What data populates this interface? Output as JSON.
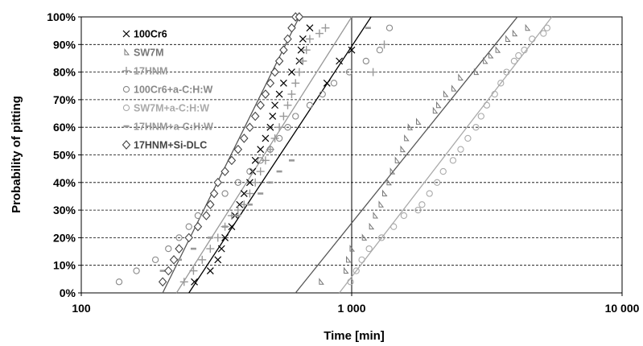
{
  "chart_data": {
    "type": "scatter",
    "title": "",
    "xlabel": "Time [min]",
    "ylabel": "Probability of pitting",
    "x_scale": "log",
    "xlim": [
      100,
      10000
    ],
    "ylim": [
      0,
      100
    ],
    "x_ticks": [
      {
        "value": 100,
        "label": "100"
      },
      {
        "value": 1000,
        "label": "1 000"
      },
      {
        "value": 10000,
        "label": "10 000"
      }
    ],
    "y_ticks": [
      {
        "value": 0,
        "label": "0%"
      },
      {
        "value": 10,
        "label": "10%"
      },
      {
        "value": 20,
        "label": "20%"
      },
      {
        "value": 30,
        "label": "30%"
      },
      {
        "value": 40,
        "label": "40%"
      },
      {
        "value": 50,
        "label": "50%"
      },
      {
        "value": 60,
        "label": "60%"
      },
      {
        "value": 70,
        "label": "70%"
      },
      {
        "value": 80,
        "label": "80%"
      },
      {
        "value": 90,
        "label": "90%"
      },
      {
        "value": 100,
        "label": "100%"
      }
    ],
    "grid": {
      "horizontal": true,
      "style": "dashed",
      "vertical_at": [
        1000
      ]
    },
    "legend_position": "top-left",
    "series": [
      {
        "name": "100Cr6",
        "marker": "x",
        "color": "#000000",
        "fit_color": "#000000",
        "x": [
          262,
          300,
          320,
          330,
          340,
          360,
          370,
          385,
          400,
          420,
          430,
          440,
          460,
          480,
          500,
          510,
          520,
          540,
          560,
          600,
          640,
          650,
          660,
          700,
          810,
          900,
          1000
        ],
        "y": [
          4,
          8,
          12,
          16,
          20,
          24,
          28,
          32,
          36,
          40,
          44,
          48,
          52,
          56,
          60,
          64,
          68,
          72,
          76,
          80,
          84,
          88,
          92,
          96,
          76,
          84,
          88
        ],
        "fit": [
          [
            250,
            0
          ],
          [
            1180,
            100
          ]
        ]
      },
      {
        "name": "SW7M",
        "marker": "triangle",
        "color": "#777777",
        "fit_color": "#555555",
        "x": [
          770,
          950,
          970,
          1000,
          1110,
          1180,
          1220,
          1280,
          1320,
          1370,
          1410,
          1470,
          1540,
          1590,
          1640,
          1760,
          2030,
          2090,
          2220,
          2380,
          2520,
          2880,
          3110,
          3260,
          3460,
          3770,
          4000,
          4460
        ],
        "y": [
          4,
          8,
          12,
          16,
          20,
          24,
          28,
          32,
          36,
          40,
          44,
          48,
          52,
          56,
          60,
          62,
          66,
          68,
          72,
          74,
          78,
          80,
          84,
          86,
          88,
          92,
          94,
          96
        ],
        "fit": [
          [
            620,
            0
          ],
          [
            4100,
            100
          ]
        ]
      },
      {
        "name": "17HNM",
        "marker": "plus",
        "color": "#999999",
        "fit_color": "#999999",
        "x": [
          240,
          260,
          280,
          300,
          320,
          340,
          360,
          380,
          400,
          420,
          440,
          460,
          480,
          500,
          520,
          540,
          560,
          580,
          600,
          620,
          640,
          660,
          680,
          700,
          760,
          800,
          1200,
          1320
        ],
        "y": [
          4,
          8,
          12,
          16,
          20,
          24,
          28,
          30,
          32,
          36,
          40,
          44,
          48,
          52,
          56,
          60,
          64,
          68,
          72,
          76,
          80,
          84,
          88,
          92,
          94,
          96,
          80,
          90
        ],
        "fit": [
          [
            225,
            0
          ],
          [
            1000,
            100
          ]
        ]
      },
      {
        "name": "100Cr6+a-C:H:W",
        "marker": "circle",
        "color": "#888888",
        "fit_color": null,
        "x": [
          138,
          160,
          188,
          210,
          230,
          250,
          270,
          300,
          340,
          380,
          420,
          460,
          500,
          540,
          580,
          620,
          700,
          780,
          860,
          980,
          1130,
          1270,
          1380
        ],
        "y": [
          4,
          8,
          12,
          16,
          20,
          24,
          28,
          32,
          36,
          40,
          44,
          48,
          52,
          56,
          60,
          64,
          68,
          72,
          76,
          80,
          84,
          88,
          96
        ],
        "fit": null
      },
      {
        "name": "SW7M+a-C:H:W",
        "marker": "circle",
        "color": "#aaaaaa",
        "fit_color": "#aaaaaa",
        "x": [
          990,
          1040,
          1090,
          1160,
          1290,
          1430,
          1560,
          1760,
          1820,
          1940,
          2070,
          2180,
          2370,
          2530,
          2690,
          2880,
          3010,
          3160,
          3380,
          3560,
          3740,
          3990,
          4140,
          4350,
          4650,
          5120,
          5280
        ],
        "y": [
          4,
          8,
          12,
          16,
          20,
          24,
          28,
          30,
          32,
          36,
          40,
          44,
          48,
          52,
          56,
          60,
          64,
          68,
          72,
          76,
          80,
          84,
          86,
          88,
          92,
          94,
          96
        ],
        "fit": [
          [
            900,
            0
          ],
          [
            5500,
            100
          ]
        ]
      },
      {
        "name": "17HNM+a-C:H:W",
        "marker": "dash",
        "color": "#999999",
        "fit_color": null,
        "x": [
          200,
          230,
          260,
          300,
          340,
          380,
          420,
          460,
          500,
          540,
          600,
          1150
        ],
        "y": [
          8,
          12,
          16,
          20,
          24,
          28,
          32,
          36,
          40,
          44,
          48,
          96
        ],
        "fit": null
      },
      {
        "name": "17HNM+Si-DLC",
        "marker": "diamond",
        "color": "#444444",
        "fit_color": "#555555",
        "x": [
          200,
          210,
          220,
          230,
          250,
          270,
          290,
          300,
          310,
          320,
          340,
          360,
          380,
          400,
          420,
          440,
          460,
          480,
          500,
          520,
          540,
          560,
          580,
          600,
          620,
          640
        ],
        "y": [
          4,
          8,
          12,
          16,
          20,
          24,
          28,
          32,
          36,
          40,
          44,
          48,
          52,
          56,
          60,
          64,
          68,
          72,
          76,
          80,
          84,
          88,
          92,
          96,
          100,
          100
        ],
        "fit": [
          [
            200,
            0
          ],
          [
            640,
            100
          ]
        ]
      }
    ]
  }
}
